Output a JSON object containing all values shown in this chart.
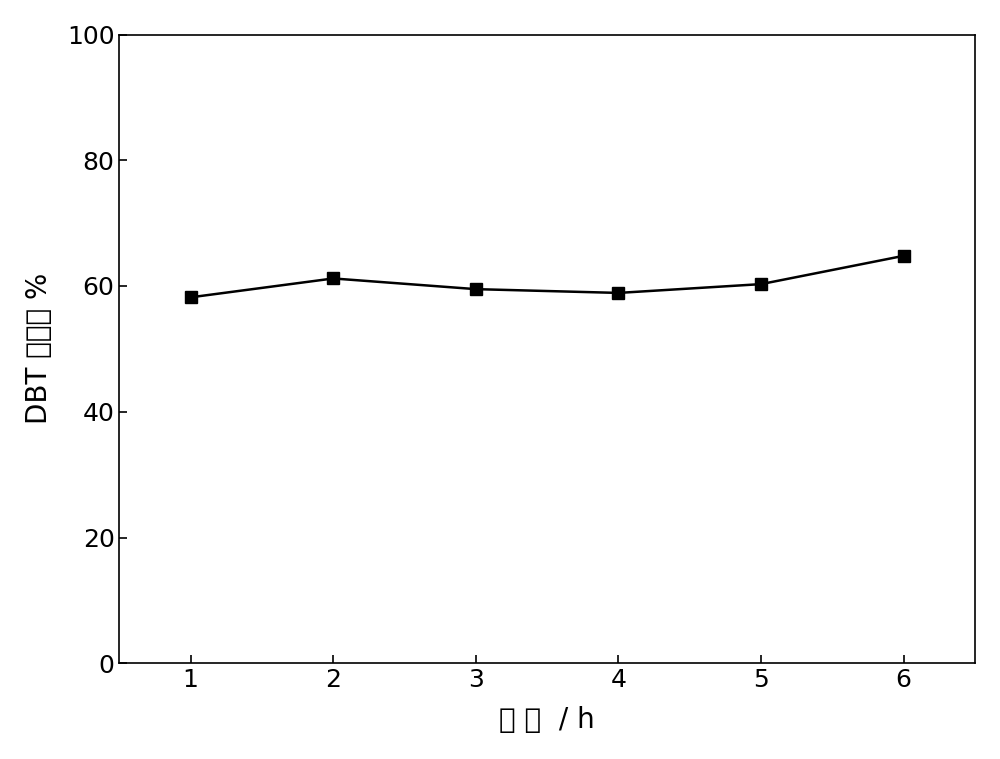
{
  "x": [
    1,
    2,
    3,
    4,
    5,
    6
  ],
  "y": [
    58.2,
    61.2,
    59.5,
    58.9,
    60.3,
    64.8
  ],
  "line_color": "#000000",
  "marker": "s",
  "marker_size": 9,
  "marker_facecolor": "#000000",
  "line_width": 1.8,
  "xlabel": "时 间  / h",
  "ylabel": "DBT 转化率 %",
  "xlim": [
    0.5,
    6.5
  ],
  "ylim": [
    0,
    100
  ],
  "xticks": [
    1,
    2,
    3,
    4,
    5,
    6
  ],
  "yticks": [
    0,
    20,
    40,
    60,
    80,
    100
  ],
  "xlabel_fontsize": 20,
  "ylabel_fontsize": 20,
  "tick_fontsize": 18,
  "background_color": "#ffffff",
  "spine_color": "#000000"
}
